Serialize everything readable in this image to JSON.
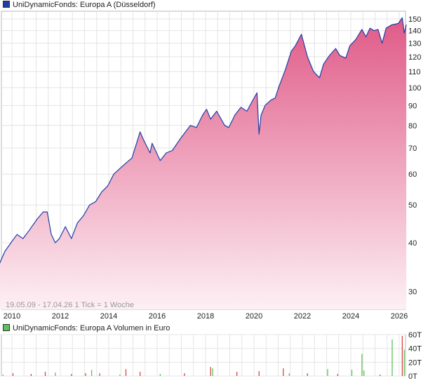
{
  "legend_price": {
    "label": "UniDynamicFonds: Europa A (Düsseldorf)",
    "color": "#1f3fa8"
  },
  "legend_volume": {
    "label": "UniDynamicFonds: Europa A Volumen in Euro",
    "color": "#5cc25c"
  },
  "range_note": "19.05.09 - 17.04.26   1 Tick = 1 Woche",
  "colors": {
    "line": "#1f3fa8",
    "fill_top": "#e05a87",
    "fill_bottom": "#fdf0f4",
    "grid": "#e4e4e4",
    "volume_up": "#5cc25c",
    "volume_down": "#d94545"
  },
  "chart_data": [
    {
      "type": "area",
      "title": "UniDynamicFonds: Europa A (Düsseldorf)",
      "y_scale": "log",
      "ylim": [
        27,
        157
      ],
      "y_ticks": [
        30,
        40,
        50,
        60,
        70,
        80,
        90,
        100,
        110,
        120,
        130,
        140,
        150
      ],
      "x_ticks": [
        "2010",
        "2012",
        "2014",
        "2016",
        "2018",
        "2020",
        "2022",
        "2024",
        "2026"
      ],
      "x": [
        "2009-05",
        "2009-07",
        "2009-09",
        "2009-12",
        "2010-03",
        "2010-06",
        "2010-09",
        "2011-01",
        "2011-04",
        "2011-06",
        "2011-08",
        "2011-10",
        "2011-12",
        "2012-03",
        "2012-06",
        "2012-09",
        "2012-12",
        "2013-03",
        "2013-06",
        "2013-09",
        "2013-12",
        "2014-03",
        "2014-06",
        "2014-09",
        "2014-12",
        "2015-03",
        "2015-04",
        "2015-06",
        "2015-09",
        "2015-10",
        "2016-02",
        "2016-05",
        "2016-08",
        "2016-12",
        "2017-05",
        "2017-08",
        "2017-11",
        "2018-01",
        "2018-03",
        "2018-06",
        "2018-10",
        "2018-12",
        "2019-03",
        "2019-06",
        "2019-09",
        "2019-12",
        "2020-02",
        "2020-03",
        "2020-04",
        "2020-06",
        "2020-09",
        "2020-11",
        "2021-01",
        "2021-04",
        "2021-07",
        "2021-09",
        "2021-12",
        "2022-03",
        "2022-06",
        "2022-09",
        "2022-11",
        "2023-02",
        "2023-05",
        "2023-07",
        "2023-10",
        "2023-12",
        "2024-03",
        "2024-06",
        "2024-08",
        "2024-10",
        "2024-12",
        "2025-02",
        "2025-04",
        "2025-06",
        "2025-09",
        "2025-12",
        "2026-02",
        "2026-03",
        "2026-04"
      ],
      "values": [
        34,
        36,
        38,
        40,
        42,
        41,
        43,
        46,
        48,
        48,
        42,
        40,
        41,
        44,
        41,
        45,
        47,
        50,
        51,
        54,
        56,
        60,
        62,
        64,
        66,
        74,
        77,
        73,
        68,
        72,
        65,
        68,
        69,
        74,
        80,
        79,
        85,
        88,
        83,
        87,
        80,
        79,
        85,
        89,
        87,
        93,
        97,
        76,
        85,
        90,
        93,
        94,
        101,
        111,
        124,
        128,
        137,
        120,
        110,
        106,
        115,
        121,
        126,
        121,
        119,
        128,
        133,
        141,
        135,
        142,
        140,
        141,
        130,
        142,
        145,
        146,
        151,
        138,
        145
      ]
    },
    {
      "type": "bar",
      "title": "UniDynamicFonds: Europa A Volumen in Euro",
      "ylim": [
        0,
        60000
      ],
      "y_ticks": [
        "0T",
        "20T",
        "40T",
        "60T"
      ],
      "bars": [
        {
          "x": "2009-08",
          "value": 2000,
          "dir": "up"
        },
        {
          "x": "2010-01",
          "value": 4000,
          "dir": "down"
        },
        {
          "x": "2010-10",
          "value": 3000,
          "dir": "down"
        },
        {
          "x": "2011-05",
          "value": 6000,
          "dir": "down"
        },
        {
          "x": "2011-10",
          "value": 5000,
          "dir": "up"
        },
        {
          "x": "2012-06",
          "value": 3000,
          "dir": "down"
        },
        {
          "x": "2013-01",
          "value": 4000,
          "dir": "down"
        },
        {
          "x": "2013-04",
          "value": 9000,
          "dir": "up"
        },
        {
          "x": "2013-08",
          "value": 4000,
          "dir": "down"
        },
        {
          "x": "2014-06",
          "value": 2000,
          "dir": "up"
        },
        {
          "x": "2014-09",
          "value": 10000,
          "dir": "down"
        },
        {
          "x": "2015-04",
          "value": 6000,
          "dir": "down"
        },
        {
          "x": "2016-02",
          "value": 3000,
          "dir": "up"
        },
        {
          "x": "2017-02",
          "value": 4000,
          "dir": "down"
        },
        {
          "x": "2018-03",
          "value": 13000,
          "dir": "down"
        },
        {
          "x": "2018-04",
          "value": 11000,
          "dir": "up"
        },
        {
          "x": "2019-04",
          "value": 6000,
          "dir": "down"
        },
        {
          "x": "2020-03",
          "value": 7000,
          "dir": "down"
        },
        {
          "x": "2021-03",
          "value": 11000,
          "dir": "down"
        },
        {
          "x": "2021-06",
          "value": 4000,
          "dir": "up"
        },
        {
          "x": "2022-03",
          "value": 4000,
          "dir": "down"
        },
        {
          "x": "2023-01",
          "value": 10000,
          "dir": "up"
        },
        {
          "x": "2023-06",
          "value": 3000,
          "dir": "down"
        },
        {
          "x": "2024-01",
          "value": 9000,
          "dir": "up"
        },
        {
          "x": "2024-06",
          "value": 32000,
          "dir": "up"
        },
        {
          "x": "2024-07",
          "value": 8000,
          "dir": "up"
        },
        {
          "x": "2025-03",
          "value": 2000,
          "dir": "down"
        },
        {
          "x": "2025-09",
          "value": 53000,
          "dir": "up"
        },
        {
          "x": "2026-02",
          "value": 58000,
          "dir": "down"
        },
        {
          "x": "2026-03",
          "value": 38000,
          "dir": "up"
        }
      ]
    }
  ]
}
